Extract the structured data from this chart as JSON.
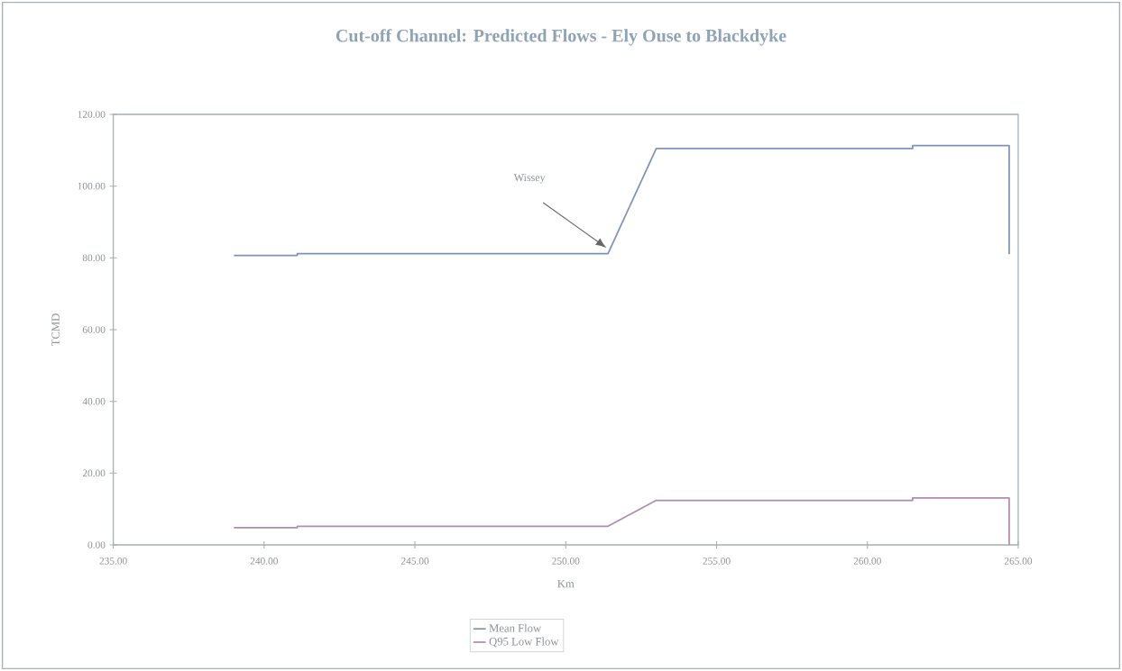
{
  "chart_data": {
    "type": "line",
    "title": "Cut-off Channel: Predicted Flows - Ely Ouse to Blackdyke",
    "xlabel": "Km",
    "ylabel": "TCMD",
    "series": [
      {
        "name": "Mean Flow",
        "color": "#7f93b8",
        "x": [
          239,
          241.1,
          241.1,
          251.4,
          253,
          261.5,
          261.5,
          264.7,
          264.7
        ],
        "values": [
          80.7,
          80.7,
          81.2,
          81.2,
          110.5,
          110.5,
          111.3,
          111.3,
          81
        ]
      },
      {
        "name": "Q95 Low Flow",
        "color": "#b48ca8",
        "x": [
          239,
          241.1,
          241.1,
          251.4,
          253,
          261.5,
          261.5,
          264.7,
          264.7
        ],
        "values": [
          4.8,
          4.8,
          5.2,
          5.2,
          12.4,
          12.4,
          13.1,
          13.1,
          0
        ]
      }
    ],
    "annotations": [
      "Wissey"
    ],
    "xlim": [
      235,
      265
    ],
    "ylim": [
      0,
      120
    ],
    "xticks": [
      {
        "value": 235,
        "label": "235.00"
      },
      {
        "value": 240,
        "label": "240.00"
      },
      {
        "value": 245,
        "label": "245.00"
      },
      {
        "value": 250,
        "label": "250.00"
      },
      {
        "value": 255,
        "label": "255.00"
      },
      {
        "value": 260,
        "label": "260.00"
      },
      {
        "value": 265,
        "label": "265.00"
      }
    ],
    "yticks": [
      {
        "value": 0,
        "label": "0.00"
      },
      {
        "value": 20,
        "label": "20.00"
      },
      {
        "value": 40,
        "label": "40.00"
      },
      {
        "value": 60,
        "label": "60.00"
      },
      {
        "value": 80,
        "label": "80.00"
      },
      {
        "value": 100,
        "label": "100.00"
      },
      {
        "value": 120,
        "label": "120.00"
      }
    ],
    "grid": false,
    "legend": "bottom",
    "line_style": "solid",
    "marker": "none"
  }
}
